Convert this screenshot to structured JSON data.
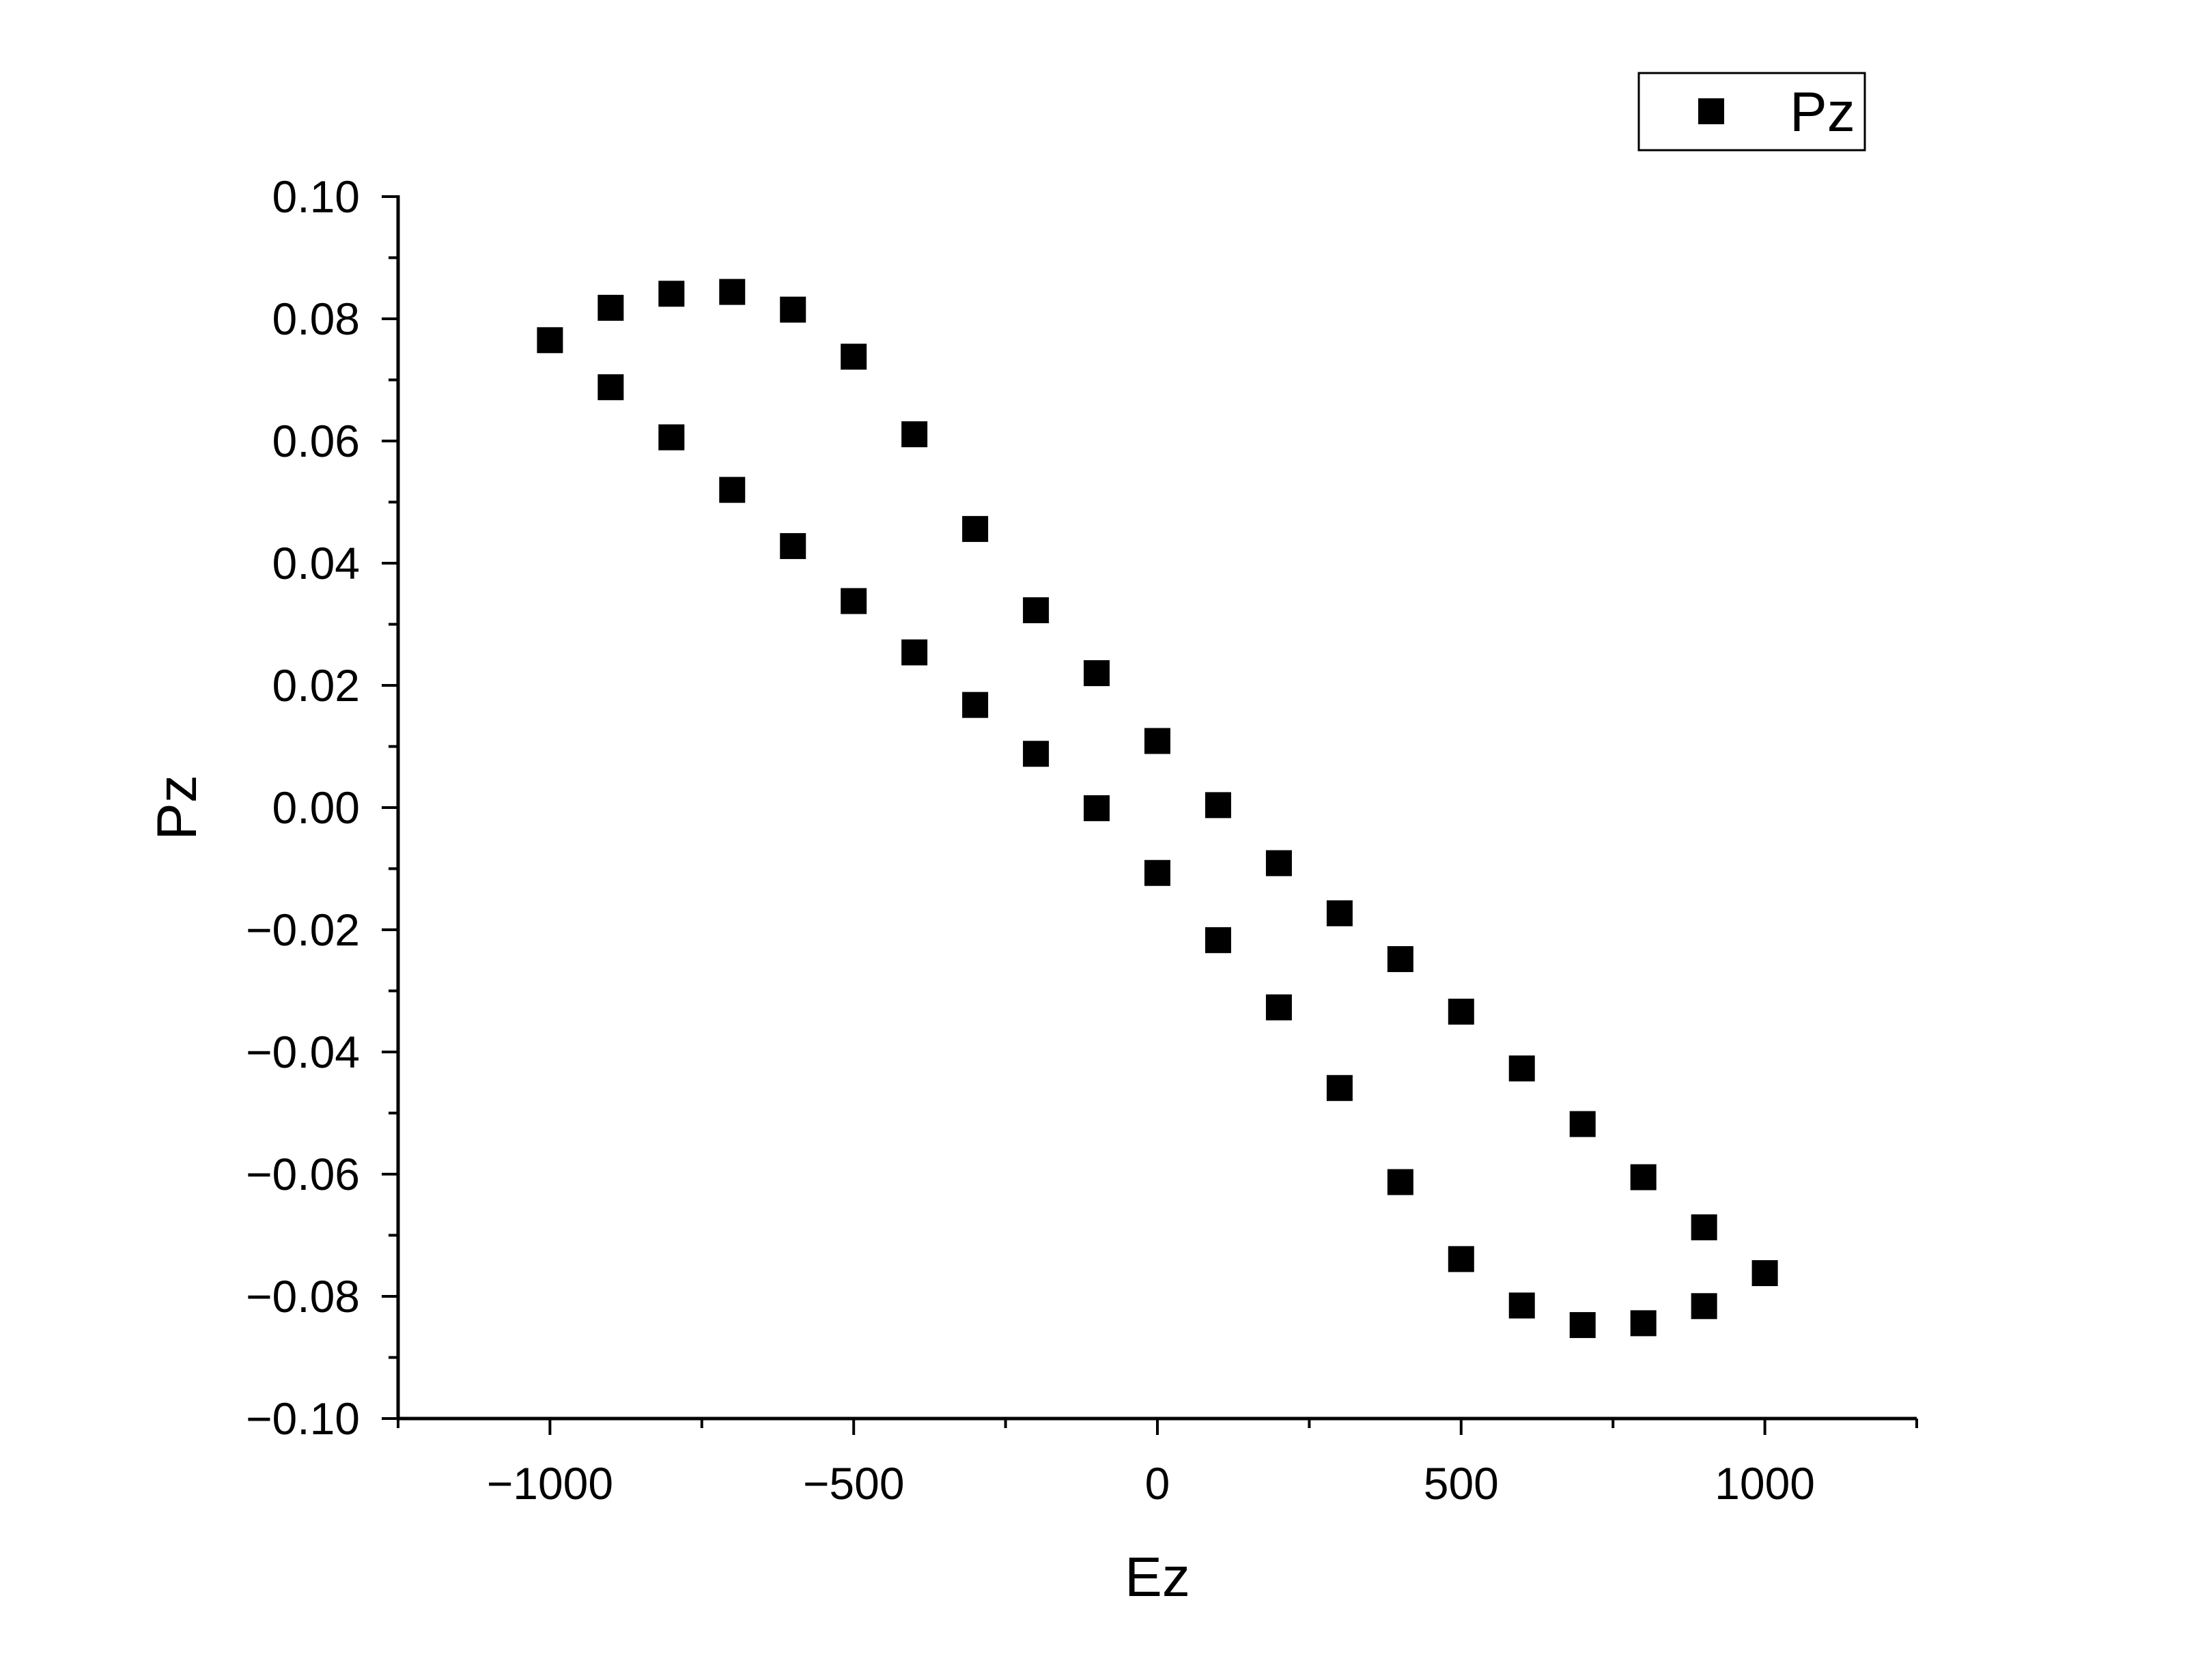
{
  "chart_data": {
    "type": "scatter",
    "title": "",
    "xlabel": "Ez",
    "ylabel": "Pz",
    "xlim": [
      -1250,
      1250
    ],
    "ylim": [
      -0.1,
      0.1
    ],
    "x_ticks": [
      -1000,
      -500,
      0,
      500,
      1000
    ],
    "x_tick_labels": [
      "−1000",
      "−500",
      "0",
      "500",
      "1000"
    ],
    "y_ticks": [
      0.1,
      0.08,
      0.06,
      0.04,
      0.02,
      0.0,
      -0.02,
      -0.04,
      -0.06,
      -0.08,
      -0.1
    ],
    "y_tick_labels": [
      "0.10",
      "0.08",
      "0.06",
      "0.04",
      "0.02",
      "0.00",
      "−0.02",
      "−0.04",
      "−0.06",
      "−0.08",
      "−0.10"
    ],
    "grid": false,
    "legend_position": "top-right",
    "series": [
      {
        "name": "Pz",
        "marker": "square",
        "color": "#000000",
        "points": [
          {
            "x": -1000,
            "y": 0.0765
          },
          {
            "x": -900,
            "y": 0.0818
          },
          {
            "x": -800,
            "y": 0.0841
          },
          {
            "x": -700,
            "y": 0.0844
          },
          {
            "x": -600,
            "y": 0.0815
          },
          {
            "x": -500,
            "y": 0.0738
          },
          {
            "x": -400,
            "y": 0.0611
          },
          {
            "x": -300,
            "y": 0.0456
          },
          {
            "x": -200,
            "y": 0.0323
          },
          {
            "x": -100,
            "y": 0.022
          },
          {
            "x": 0,
            "y": 0.0109
          },
          {
            "x": 100,
            "y": 0.0004
          },
          {
            "x": 200,
            "y": -0.0091
          },
          {
            "x": 300,
            "y": -0.0173
          },
          {
            "x": 400,
            "y": -0.0248
          },
          {
            "x": 500,
            "y": -0.0334
          },
          {
            "x": 600,
            "y": -0.0427
          },
          {
            "x": 700,
            "y": -0.0518
          },
          {
            "x": 800,
            "y": -0.0605
          },
          {
            "x": 900,
            "y": -0.0687
          },
          {
            "x": 1000,
            "y": -0.0762
          },
          {
            "x": 900,
            "y": -0.0816
          },
          {
            "x": 800,
            "y": -0.0844
          },
          {
            "x": 700,
            "y": -0.0847
          },
          {
            "x": 600,
            "y": -0.0815
          },
          {
            "x": 500,
            "y": -0.0739
          },
          {
            "x": 400,
            "y": -0.0613
          },
          {
            "x": 300,
            "y": -0.0459
          },
          {
            "x": 200,
            "y": -0.0327
          },
          {
            "x": 100,
            "y": -0.0217
          },
          {
            "x": 0,
            "y": -0.0107
          },
          {
            "x": -100,
            "y": -0.0001
          },
          {
            "x": -200,
            "y": 0.0088
          },
          {
            "x": -300,
            "y": 0.0168
          },
          {
            "x": -400,
            "y": 0.0254
          },
          {
            "x": -500,
            "y": 0.0338
          },
          {
            "x": -600,
            "y": 0.0428
          },
          {
            "x": -700,
            "y": 0.052
          },
          {
            "x": -800,
            "y": 0.0606
          },
          {
            "x": -900,
            "y": 0.0688
          }
        ]
      }
    ]
  }
}
